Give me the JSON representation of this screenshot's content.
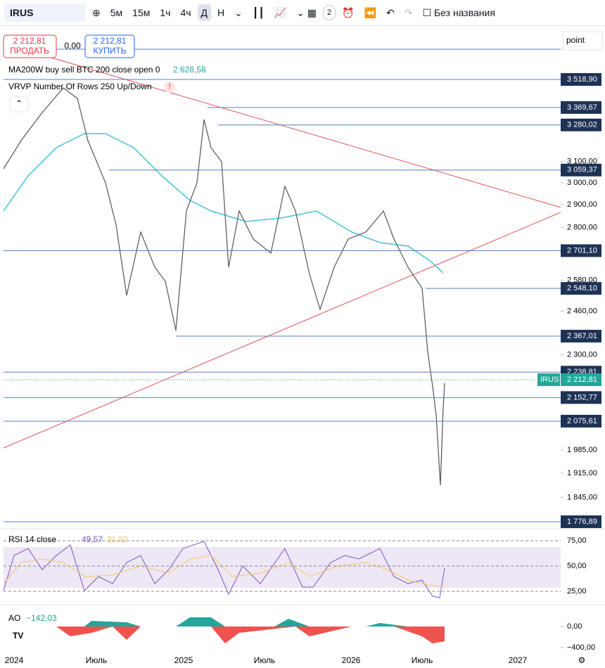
{
  "toolbar": {
    "symbol": "IRUS",
    "intervals": [
      "5м",
      "15м",
      "1ч",
      "4ч",
      "Д",
      "Н"
    ],
    "layout_badge": "2",
    "layout_name": "Без названия"
  },
  "trade": {
    "sell_price": "2 212,81",
    "sell_label": "ПРОДАТЬ",
    "spread": "0,00",
    "buy_price": "2 212,81",
    "buy_label": "КУПИТЬ"
  },
  "indicators": {
    "ma": {
      "name": "MA200W buy sell BTC 200 close open 0",
      "value": "2 628,58"
    },
    "vrvp": {
      "name": "VRVP Number Of Rows 250 Up/Down",
      "warning": "!"
    }
  },
  "price_axis": {
    "unit": "point",
    "ticks": [
      {
        "value": 3100,
        "label": "3 100,00"
      },
      {
        "value": 3000,
        "label": "3 000,00"
      },
      {
        "value": 2900,
        "label": "2 900,00"
      },
      {
        "value": 2800,
        "label": "2 800,00"
      },
      {
        "value": 2580,
        "label": "2 580,00"
      },
      {
        "value": 2460,
        "label": "2 460,00"
      },
      {
        "value": 2300,
        "label": "2 300,00"
      },
      {
        "value": 1985,
        "label": "1 985,00"
      },
      {
        "value": 1915,
        "label": "1 915,00"
      },
      {
        "value": 1845,
        "label": "1 845,00"
      }
    ],
    "levels": [
      {
        "value": 3518.9,
        "label": "3 518,90"
      },
      {
        "value": 3369.67,
        "label": "3 369,67"
      },
      {
        "value": 3280.02,
        "label": "3 280,02"
      },
      {
        "value": 3059.37,
        "label": "3 059,37"
      },
      {
        "value": 2701.1,
        "label": "2 701,10"
      },
      {
        "value": 2548.1,
        "label": "2 548,10"
      },
      {
        "value": 2367.01,
        "label": "2 367,01"
      },
      {
        "value": 2238.81,
        "label": "2 238,81"
      },
      {
        "value": 2152.77,
        "label": "2 152,77"
      },
      {
        "value": 2075.61,
        "label": "2 075,61"
      },
      {
        "value": 1776.89,
        "label": "1 776,89"
      }
    ],
    "last": {
      "symbol": "IRUS",
      "value": 2212.81,
      "label": "2 212,81"
    }
  },
  "rsi": {
    "name": "RSI 14 close",
    "value": "49,57",
    "ma_value": "31,82",
    "ticks": [
      {
        "value": 75,
        "label": "75,00"
      },
      {
        "value": 50,
        "label": "50,00"
      },
      {
        "value": 25,
        "label": "25,00"
      }
    ]
  },
  "ao": {
    "name": "AO",
    "value": "−142,03",
    "ticks": [
      {
        "value": 0,
        "label": "0,00"
      },
      {
        "value": -400,
        "label": "−400,00"
      }
    ]
  },
  "time_axis": [
    "2024",
    "Июль",
    "2025",
    "Июль",
    "2026",
    "Июль",
    "2027"
  ]
}
